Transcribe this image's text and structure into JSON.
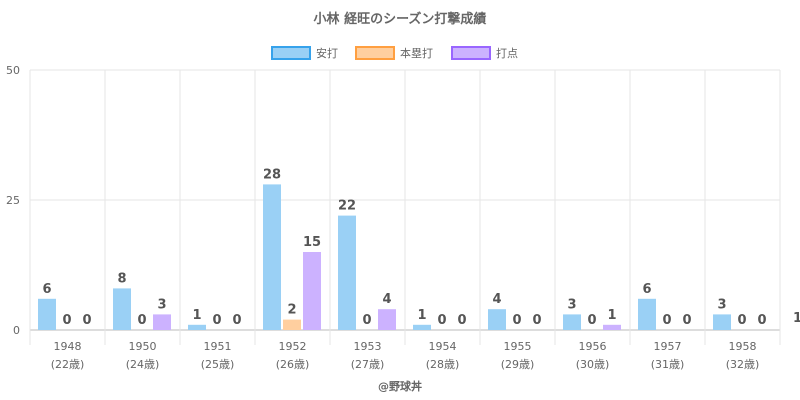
{
  "chart_data": {
    "type": "bar",
    "title": "小林 経旺のシーズン打撃成績",
    "categories": [
      "1948",
      "1950",
      "1951",
      "1952",
      "1953",
      "1954",
      "1955",
      "1956",
      "1957",
      "1958"
    ],
    "sublabels": [
      "(22歳)",
      "(24歳)",
      "(25歳)",
      "(26歳)",
      "(27歳)",
      "(28歳)",
      "(29歳)",
      "(30歳)",
      "(31歳)",
      "(32歳)"
    ],
    "series": [
      {
        "name": "安打",
        "values": [
          6,
          8,
          1,
          28,
          22,
          1,
          4,
          3,
          6,
          3
        ],
        "fill": "#9ad0f5",
        "stroke": "#36a2eb"
      },
      {
        "name": "本塁打",
        "values": [
          0,
          0,
          0,
          2,
          0,
          0,
          0,
          0,
          0,
          0
        ],
        "fill": "#ffcf9f",
        "stroke": "#ff9f40"
      },
      {
        "name": "打点",
        "values": [
          0,
          3,
          0,
          15,
          4,
          0,
          0,
          1,
          0,
          0
        ],
        "fill": "#ccb2ff",
        "stroke": "#9966ff"
      }
    ],
    "ylim": [
      0,
      50
    ],
    "yticks": [
      0,
      25,
      50
    ],
    "legend": "top",
    "clipped_label": "1",
    "credit": "@野球丼"
  }
}
